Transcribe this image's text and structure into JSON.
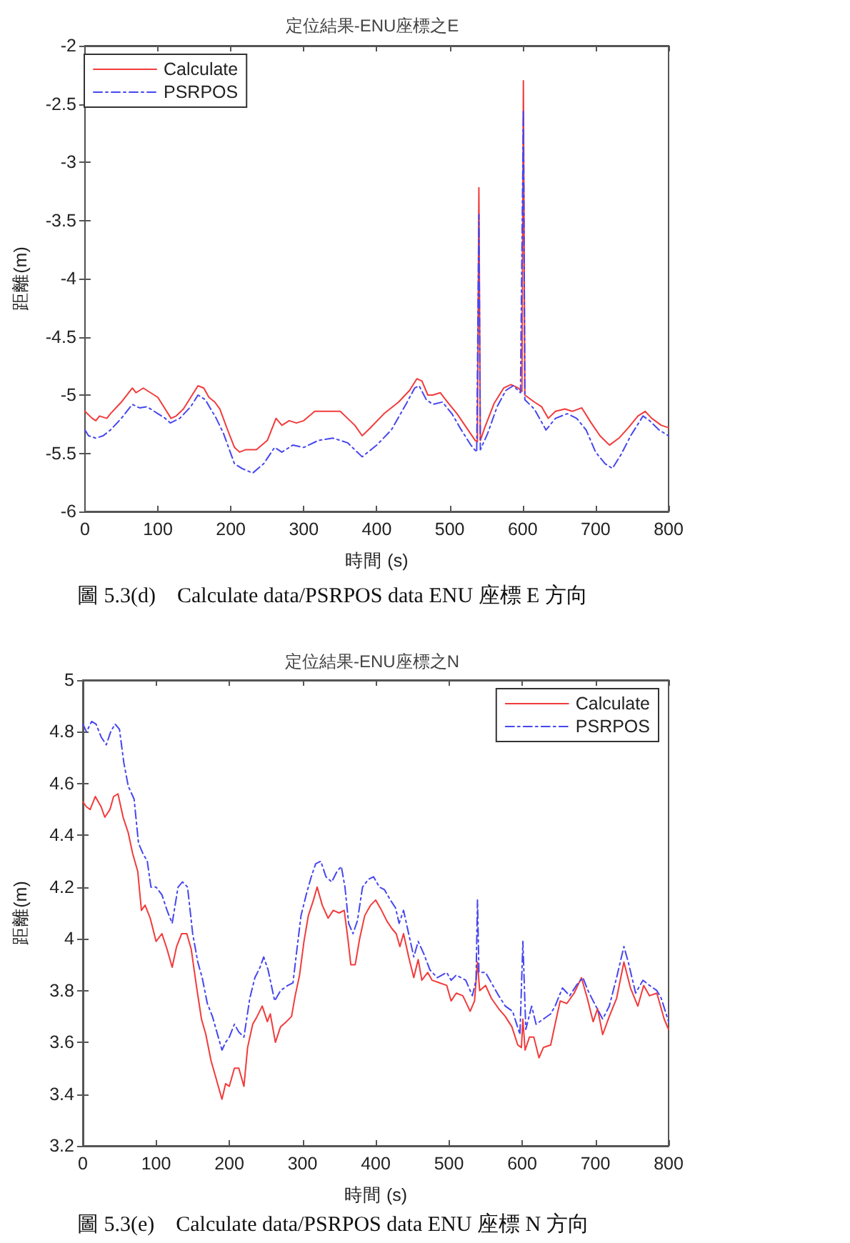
{
  "chart_data": [
    {
      "type": "line",
      "title": "定位結果-ENU座標之E",
      "xlabel": "時間 (s)",
      "ylabel": "距離(m)",
      "xlim": [
        0,
        800
      ],
      "xticks": [
        0,
        100,
        200,
        300,
        400,
        500,
        600,
        700,
        800
      ],
      "ylim": [
        -6,
        -2
      ],
      "yticks": [
        -6,
        -5.5,
        -5,
        -4.5,
        -4,
        -3.5,
        -3,
        -2.5,
        -2
      ],
      "grid": false,
      "legend": "top left",
      "marker": "none",
      "annotations": [
        "圖 5.3(d)    Calculate data/PSRPOS data ENU 座標 E 方向"
      ],
      "series": [
        {
          "name": "Calculate",
          "color": "#f23b3b",
          "line_style": "solid",
          "x": [
            0,
            10,
            15,
            20,
            30,
            35,
            50,
            65,
            70,
            80,
            90,
            100,
            110,
            118,
            125,
            135,
            145,
            155,
            163,
            170,
            178,
            185,
            195,
            205,
            212,
            220,
            235,
            250,
            262,
            270,
            280,
            290,
            300,
            315,
            330,
            350,
            360,
            370,
            380,
            390,
            410,
            430,
            445,
            455,
            462,
            470,
            477,
            487,
            497,
            510,
            523,
            535,
            538,
            540,
            542,
            548,
            561,
            574,
            584,
            594,
            599,
            601,
            603,
            616,
            626,
            635,
            645,
            658,
            668,
            681,
            694,
            706,
            719,
            732,
            745,
            758,
            768,
            777,
            790,
            800
          ],
          "values": [
            -5.14,
            -5.2,
            -5.22,
            -5.18,
            -5.2,
            -5.16,
            -5.06,
            -4.94,
            -4.98,
            -4.94,
            -4.98,
            -5.02,
            -5.12,
            -5.2,
            -5.18,
            -5.12,
            -5.02,
            -4.92,
            -4.94,
            -5.02,
            -5.06,
            -5.12,
            -5.29,
            -5.45,
            -5.49,
            -5.47,
            -5.47,
            -5.39,
            -5.2,
            -5.26,
            -5.22,
            -5.24,
            -5.22,
            -5.14,
            -5.14,
            -5.14,
            -5.2,
            -5.26,
            -5.35,
            -5.29,
            -5.16,
            -5.06,
            -4.96,
            -4.86,
            -4.88,
            -5.0,
            -5.0,
            -4.98,
            -5.06,
            -5.16,
            -5.28,
            -5.39,
            -5.4,
            -3.22,
            -5.39,
            -5.28,
            -5.07,
            -4.94,
            -4.91,
            -4.94,
            -4.97,
            -2.3,
            -5.0,
            -5.06,
            -5.1,
            -5.2,
            -5.14,
            -5.12,
            -5.14,
            -5.11,
            -5.24,
            -5.35,
            -5.43,
            -5.37,
            -5.28,
            -5.18,
            -5.14,
            -5.2,
            -5.26,
            -5.28
          ]
        },
        {
          "name": "PSRPOS",
          "color": "#4646f0",
          "line_style": "dashdot",
          "x": [
            0,
            5,
            15,
            25,
            35,
            50,
            65,
            75,
            85,
            100,
            110,
            117,
            130,
            145,
            155,
            165,
            180,
            190,
            205,
            215,
            230,
            245,
            260,
            270,
            285,
            300,
            320,
            340,
            360,
            380,
            400,
            420,
            440,
            452,
            458,
            468,
            477,
            490,
            503,
            516,
            529,
            537,
            540,
            542,
            552,
            565,
            577,
            587,
            597,
            601,
            603,
            616,
            632,
            645,
            661,
            674,
            687,
            700,
            713,
            723,
            735,
            748,
            765,
            774,
            787,
            800
          ],
          "values": [
            -5.3,
            -5.35,
            -5.37,
            -5.35,
            -5.3,
            -5.2,
            -5.08,
            -5.11,
            -5.1,
            -5.16,
            -5.2,
            -5.24,
            -5.2,
            -5.1,
            -5.0,
            -5.04,
            -5.2,
            -5.33,
            -5.59,
            -5.63,
            -5.67,
            -5.59,
            -5.45,
            -5.49,
            -5.43,
            -5.45,
            -5.39,
            -5.37,
            -5.41,
            -5.53,
            -5.43,
            -5.3,
            -5.08,
            -4.94,
            -4.92,
            -5.04,
            -5.08,
            -5.06,
            -5.16,
            -5.3,
            -5.43,
            -5.49,
            -3.45,
            -5.47,
            -5.33,
            -5.1,
            -4.96,
            -4.92,
            -4.98,
            -2.55,
            -5.04,
            -5.12,
            -5.3,
            -5.2,
            -5.16,
            -5.2,
            -5.3,
            -5.49,
            -5.59,
            -5.63,
            -5.51,
            -5.35,
            -5.18,
            -5.22,
            -5.3,
            -5.35
          ]
        }
      ]
    },
    {
      "type": "line",
      "title": "定位結果-ENU座標之N",
      "xlabel": "時間 (s)",
      "ylabel": "距離(m)",
      "xlim": [
        0,
        800
      ],
      "xticks": [
        0,
        100,
        200,
        300,
        400,
        500,
        600,
        700,
        800
      ],
      "ylim": [
        3.2,
        5
      ],
      "yticks": [
        3.2,
        3.4,
        3.6,
        3.8,
        4,
        4.2,
        4.4,
        4.6,
        4.8,
        5
      ],
      "grid": false,
      "legend": "top right",
      "marker": "none",
      "annotations": [
        "圖 5.3(e)    Calculate data/PSRPOS data ENU 座標 N 方向"
      ],
      "series": [
        {
          "name": "Calculate",
          "color": "#f23b3b",
          "line_style": "solid",
          "x": [
            0,
            5,
            10,
            17,
            25,
            30,
            37,
            42,
            48,
            55,
            62,
            68,
            75,
            80,
            85,
            92,
            100,
            108,
            115,
            122,
            128,
            135,
            142,
            148,
            155,
            162,
            168,
            175,
            182,
            190,
            195,
            200,
            207,
            213,
            220,
            225,
            232,
            238,
            245,
            252,
            256,
            263,
            270,
            278,
            285,
            290,
            296,
            302,
            308,
            315,
            320,
            327,
            335,
            342,
            350,
            357,
            362,
            366,
            372,
            378,
            385,
            393,
            400,
            408,
            415,
            422,
            428,
            433,
            438,
            445,
            452,
            458,
            463,
            471,
            477,
            487,
            497,
            503,
            510,
            519,
            529,
            535,
            539,
            542,
            550,
            558,
            568,
            577,
            586,
            594,
            599,
            601,
            604,
            610,
            616,
            623,
            629,
            639,
            645,
            652,
            661,
            671,
            681,
            689,
            697,
            703,
            710,
            719,
            729,
            739,
            748,
            758,
            766,
            774,
            784,
            794,
            800
          ],
          "values": [
            4.53,
            4.51,
            4.5,
            4.55,
            4.51,
            4.47,
            4.5,
            4.55,
            4.56,
            4.47,
            4.41,
            4.33,
            4.26,
            4.11,
            4.13,
            4.08,
            3.99,
            4.02,
            3.96,
            3.89,
            3.97,
            4.02,
            4.02,
            3.96,
            3.82,
            3.69,
            3.63,
            3.53,
            3.46,
            3.38,
            3.44,
            3.43,
            3.5,
            3.5,
            3.43,
            3.58,
            3.67,
            3.7,
            3.74,
            3.68,
            3.71,
            3.6,
            3.66,
            3.68,
            3.7,
            3.78,
            3.86,
            3.99,
            4.09,
            4.15,
            4.2,
            4.13,
            4.08,
            4.11,
            4.1,
            4.11,
            4.0,
            3.9,
            3.9,
            4.0,
            4.09,
            4.13,
            4.15,
            4.11,
            4.07,
            4.04,
            4.02,
            3.97,
            4.02,
            3.93,
            3.85,
            3.92,
            3.84,
            3.87,
            3.84,
            3.83,
            3.82,
            3.76,
            3.79,
            3.78,
            3.72,
            3.76,
            3.91,
            3.8,
            3.82,
            3.77,
            3.73,
            3.7,
            3.66,
            3.59,
            3.58,
            3.69,
            3.57,
            3.62,
            3.62,
            3.54,
            3.58,
            3.59,
            3.67,
            3.76,
            3.75,
            3.79,
            3.85,
            3.77,
            3.68,
            3.73,
            3.63,
            3.7,
            3.77,
            3.91,
            3.81,
            3.74,
            3.82,
            3.78,
            3.79,
            3.69,
            3.65
          ]
        },
        {
          "name": "PSRPOS",
          "color": "#4646f0",
          "line_style": "dashdot",
          "x": [
            0,
            5,
            12,
            18,
            25,
            32,
            38,
            44,
            50,
            56,
            62,
            70,
            76,
            82,
            88,
            93,
            100,
            108,
            115,
            122,
            130,
            136,
            143,
            150,
            157,
            163,
            170,
            177,
            185,
            190,
            195,
            200,
            207,
            213,
            220,
            228,
            235,
            242,
            247,
            253,
            262,
            270,
            280,
            287,
            292,
            298,
            305,
            312,
            318,
            325,
            332,
            340,
            347,
            353,
            358,
            363,
            369,
            375,
            382,
            390,
            397,
            405,
            412,
            420,
            427,
            432,
            438,
            445,
            452,
            458,
            466,
            474,
            484,
            497,
            503,
            510,
            523,
            532,
            537,
            539,
            541,
            550,
            558,
            568,
            577,
            587,
            597,
            601,
            605,
            613,
            619,
            629,
            639,
            645,
            655,
            665,
            674,
            683,
            690,
            697,
            710,
            719,
            729,
            739,
            745,
            755,
            765,
            774,
            784,
            790,
            800
          ],
          "values": [
            4.83,
            4.8,
            4.84,
            4.83,
            4.78,
            4.75,
            4.8,
            4.83,
            4.81,
            4.68,
            4.59,
            4.54,
            4.37,
            4.33,
            4.3,
            4.2,
            4.2,
            4.17,
            4.11,
            4.06,
            4.2,
            4.22,
            4.2,
            4.02,
            3.91,
            3.85,
            3.75,
            3.7,
            3.62,
            3.57,
            3.6,
            3.62,
            3.67,
            3.64,
            3.62,
            3.77,
            3.85,
            3.89,
            3.93,
            3.88,
            3.76,
            3.8,
            3.82,
            3.83,
            3.95,
            4.09,
            4.17,
            4.24,
            4.29,
            4.3,
            4.24,
            4.22,
            4.26,
            4.28,
            4.2,
            4.06,
            4.02,
            4.07,
            4.2,
            4.23,
            4.24,
            4.2,
            4.19,
            4.15,
            4.12,
            4.06,
            4.11,
            4.02,
            3.93,
            3.99,
            3.94,
            3.88,
            3.85,
            3.87,
            3.84,
            3.86,
            3.84,
            3.78,
            3.84,
            4.15,
            3.87,
            3.87,
            3.83,
            3.78,
            3.74,
            3.72,
            3.63,
            3.99,
            3.65,
            3.74,
            3.67,
            3.69,
            3.71,
            3.74,
            3.81,
            3.78,
            3.82,
            3.85,
            3.8,
            3.76,
            3.69,
            3.74,
            3.85,
            3.97,
            3.91,
            3.79,
            3.84,
            3.82,
            3.8,
            3.77,
            3.68
          ]
        }
      ]
    }
  ]
}
